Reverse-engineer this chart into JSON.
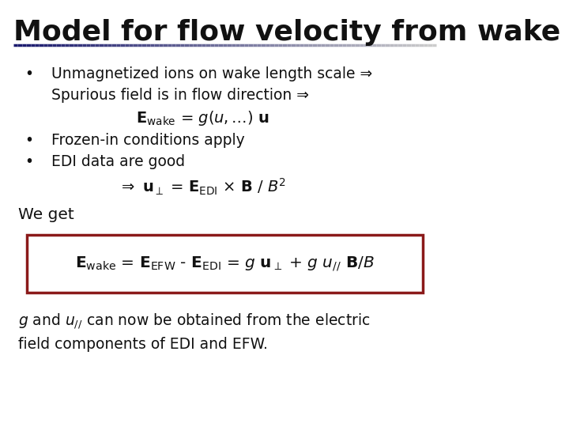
{
  "title": "Model for flow velocity from wake",
  "title_fontsize": 26,
  "title_color": "#111111",
  "title_underline_color_left": "#1a1a6e",
  "title_underline_color_right": "#cccccc",
  "bg_color": "#ffffff",
  "text_color": "#111111",
  "box_color": "#8b1a1a",
  "bullet1": "Unmagnetized ions on wake length scale ⇒",
  "bullet1b": "Spurious field is in flow direction ⇒",
  "bullet1c_math": "$\\mathbf{E}_{\\mathrm{wake}}$ = $g(u,\\ldots)$ $\\mathbf{u}$",
  "bullet2": "Frozen-in conditions apply",
  "bullet3": "EDI data are good",
  "bullet3b_math": "⇒ $\\mathbf{u}_{\\perp}$ = $\\mathbf{E}_{\\mathrm{EDI}}$ × $\\mathbf{B}$ / $B^2$",
  "we_get": "We get",
  "box_math": "$\\mathbf{E}_{\\mathrm{wake}}$ = $\\mathbf{E}_{\\mathrm{EFW}}$ - $\\mathbf{E}_{\\mathrm{EDI}}$ = $g$ $\\mathbf{u}_{\\perp}$ + $g$ $u_{//}$ $\\mathbf{B}$/$B$",
  "footer": "$g$ and $u_{//}$ can now be obtained from the electric\nfield components of EDI and EFW."
}
